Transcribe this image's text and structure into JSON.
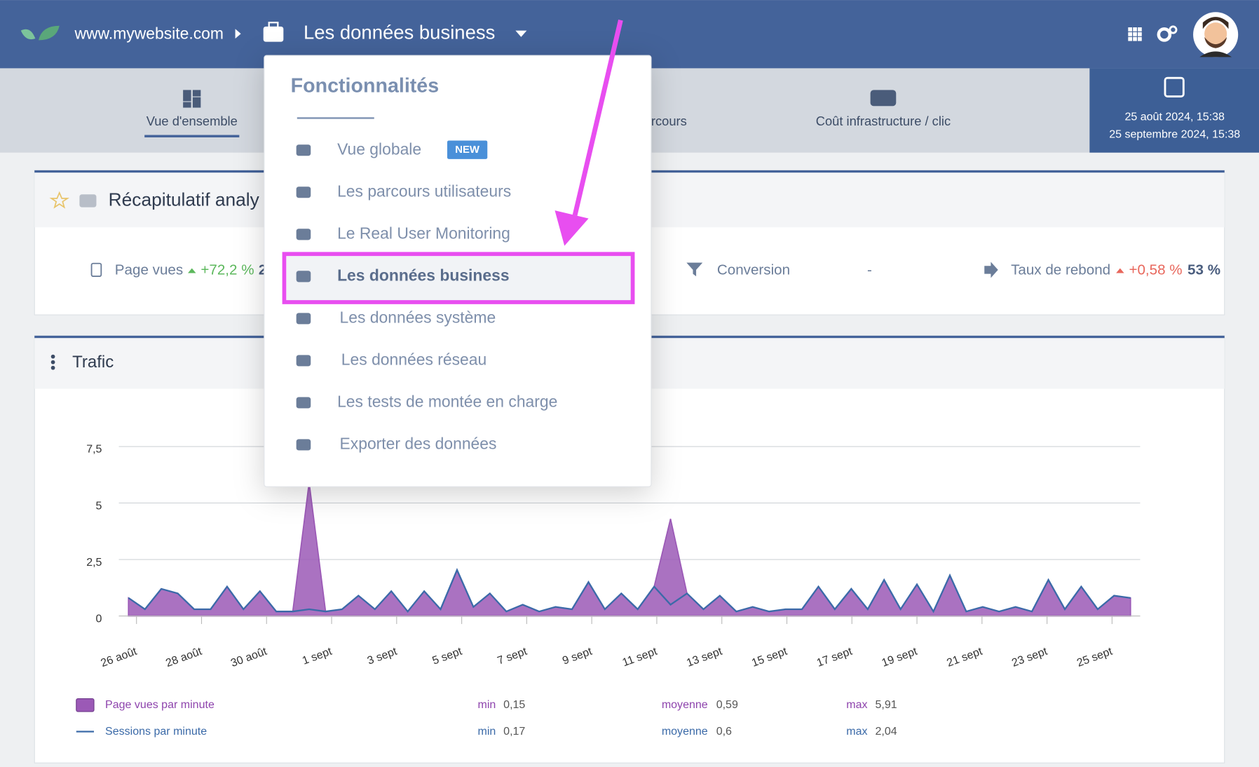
{
  "header": {
    "site": "www.mywebsite.com",
    "section": "Les données business"
  },
  "tabs": [
    "Vue d'ensemble",
    "rcours",
    "Coût infrastructure / clic"
  ],
  "date_range": {
    "start": "25 août 2024, 15:38",
    "end": "25 septembre 2024, 15:38"
  },
  "summary": {
    "title": "Récapitulatif analy",
    "metrics": [
      {
        "label": "Page vues",
        "change": "+72,2 %",
        "value": "2"
      },
      {
        "label": "Conversion",
        "value": "-"
      },
      {
        "label": "Taux de rebond",
        "change": "+0,58 %",
        "value": "53 %"
      }
    ]
  },
  "menu": {
    "title": "Fonctionnalités",
    "badge": "NEW",
    "items": [
      "Vue globale",
      "Les parcours utilisateurs",
      "Le Real User Monitoring",
      "Les données business",
      "Les données système",
      "Les données réseau",
      "Les tests de montée en charge",
      "Exporter des données"
    ]
  },
  "chart_data": {
    "type": "area",
    "title": "Trafic",
    "x_labels": [
      "26 août",
      "28 août",
      "30 août",
      "1 sept",
      "3 sept",
      "5 sept",
      "7 sept",
      "9 sept",
      "11 sept",
      "13 sept",
      "15 sept",
      "17 sept",
      "19 sept",
      "21 sept",
      "23 sept",
      "25 sept"
    ],
    "ylim": [
      0,
      7.5
    ],
    "yticks": [
      0,
      {
        "value": 2.5,
        "label": "2,5"
      },
      5,
      {
        "value": 7.5,
        "label": "7,5"
      }
    ],
    "grid": true,
    "stat_labels": {
      "min": "min",
      "mean": "moyenne",
      "max": "max"
    },
    "series": [
      {
        "name": "Page vues par minute",
        "color": "#9b59b6",
        "min": "0,15",
        "mean": "0,59",
        "max": "5,91",
        "values": [
          0.8,
          0.3,
          1.2,
          1.0,
          0.3,
          0.3,
          1.3,
          0.3,
          1.1,
          0.2,
          0.2,
          5.91,
          0.2,
          0.3,
          0.9,
          0.3,
          1.1,
          0.2,
          1.1,
          0.3,
          2.0,
          0.4,
          1.0,
          0.2,
          0.5,
          0.2,
          0.4,
          0.3,
          1.5,
          0.3,
          1.0,
          0.3,
          1.3,
          4.3,
          1.0,
          0.3,
          0.9,
          0.2,
          0.4,
          0.2,
          0.3,
          0.3,
          1.3,
          0.3,
          1.2,
          0.3,
          1.6,
          0.3,
          1.4,
          0.2,
          1.8,
          0.2,
          0.4,
          0.2,
          0.4,
          0.2,
          1.6,
          0.3,
          1.3,
          0.3,
          0.9,
          0.8
        ]
      },
      {
        "name": "Sessions par minute",
        "color": "#3b6aa8",
        "min": "0,17",
        "mean": "0,6",
        "max": "2,04",
        "values": [
          0.8,
          0.3,
          1.2,
          1.0,
          0.3,
          0.3,
          1.3,
          0.3,
          1.1,
          0.2,
          0.2,
          0.3,
          0.2,
          0.3,
          0.9,
          0.3,
          1.1,
          0.2,
          1.1,
          0.3,
          2.04,
          0.4,
          1.0,
          0.2,
          0.5,
          0.2,
          0.4,
          0.3,
          1.5,
          0.3,
          1.0,
          0.3,
          1.3,
          0.5,
          1.0,
          0.3,
          0.9,
          0.2,
          0.4,
          0.2,
          0.3,
          0.3,
          1.3,
          0.3,
          1.2,
          0.3,
          1.6,
          0.3,
          1.4,
          0.2,
          1.8,
          0.2,
          0.4,
          0.2,
          0.4,
          0.2,
          1.6,
          0.3,
          1.3,
          0.3,
          0.9,
          0.8
        ]
      }
    ]
  }
}
